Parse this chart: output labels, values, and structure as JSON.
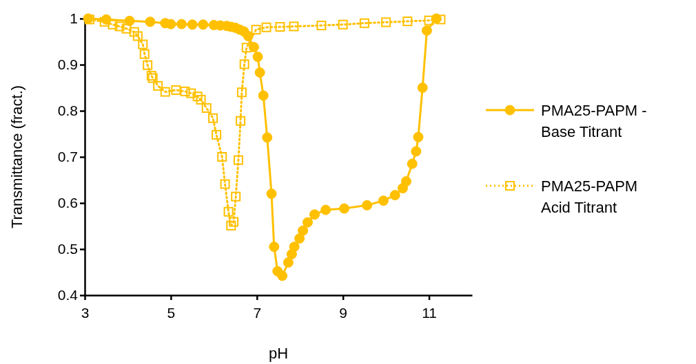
{
  "chart_data": {
    "type": "line",
    "xlabel": "pH",
    "ylabel": "Transmittance (fract.)",
    "xlim": [
      3,
      12
    ],
    "xticks": [
      3,
      5,
      7,
      9,
      11
    ],
    "ylim": [
      0.4,
      1.0
    ],
    "yticks": [
      0.4,
      0.5,
      0.6,
      0.7,
      0.8,
      0.9,
      {
        "value": 1.0,
        "label": "1"
      }
    ],
    "grid": false,
    "legend": "right",
    "series": [
      {
        "name": "PMA25-PAPM - Base Titrant",
        "color": "#ffc000",
        "marker": "circle",
        "line_style": "solid",
        "x": [
          3.08,
          3.5,
          4.04,
          4.52,
          4.87,
          5.0,
          5.25,
          5.5,
          5.75,
          6.0,
          6.15,
          6.3,
          6.4,
          6.5,
          6.6,
          6.7,
          6.8,
          6.93,
          7.02,
          7.07,
          7.15,
          7.24,
          7.34,
          7.4,
          7.48,
          7.59,
          7.73,
          7.81,
          7.87,
          7.99,
          8.07,
          8.18,
          8.34,
          8.6,
          9.03,
          9.56,
          9.94,
          10.21,
          10.39,
          10.47,
          10.61,
          10.7,
          10.75,
          10.85,
          10.95,
          11.17
        ],
        "values": [
          1.0,
          0.998,
          0.995,
          0.993,
          0.99,
          0.988,
          0.988,
          0.987,
          0.987,
          0.986,
          0.985,
          0.984,
          0.982,
          0.98,
          0.976,
          0.972,
          0.962,
          0.938,
          0.917,
          0.883,
          0.833,
          0.742,
          0.62,
          0.505,
          0.452,
          0.442,
          0.471,
          0.489,
          0.505,
          0.523,
          0.54,
          0.558,
          0.575,
          0.585,
          0.588,
          0.595,
          0.605,
          0.617,
          0.632,
          0.647,
          0.685,
          0.712,
          0.743,
          0.85,
          0.974,
          1.0
        ]
      },
      {
        "name": "PMA25-PAPM Acid Titrant",
        "color": "#ffc000",
        "marker": "square",
        "line_style": "dotted",
        "x": [
          3.11,
          3.46,
          3.65,
          3.81,
          3.97,
          4.15,
          4.23,
          4.35,
          4.39,
          4.46,
          4.55,
          4.58,
          4.7,
          4.87,
          5.12,
          5.33,
          5.47,
          5.62,
          5.7,
          5.83,
          5.98,
          6.06,
          6.19,
          6.26,
          6.34,
          6.4,
          6.46,
          6.51,
          6.57,
          6.62,
          6.65,
          6.71,
          6.76,
          6.98,
          7.22,
          7.54,
          7.86,
          8.5,
          9.0,
          9.5,
          10.0,
          10.5,
          11.0,
          11.27
        ],
        "values": [
          0.998,
          0.993,
          0.987,
          0.983,
          0.978,
          0.971,
          0.962,
          0.944,
          0.923,
          0.899,
          0.876,
          0.871,
          0.854,
          0.841,
          0.845,
          0.842,
          0.838,
          0.831,
          0.824,
          0.806,
          0.784,
          0.748,
          0.7,
          0.641,
          0.581,
          0.551,
          0.559,
          0.614,
          0.693,
          0.778,
          0.84,
          0.901,
          0.937,
          0.976,
          0.981,
          0.982,
          0.983,
          0.985,
          0.987,
          0.99,
          0.992,
          0.994,
          0.996,
          0.998
        ]
      }
    ]
  }
}
